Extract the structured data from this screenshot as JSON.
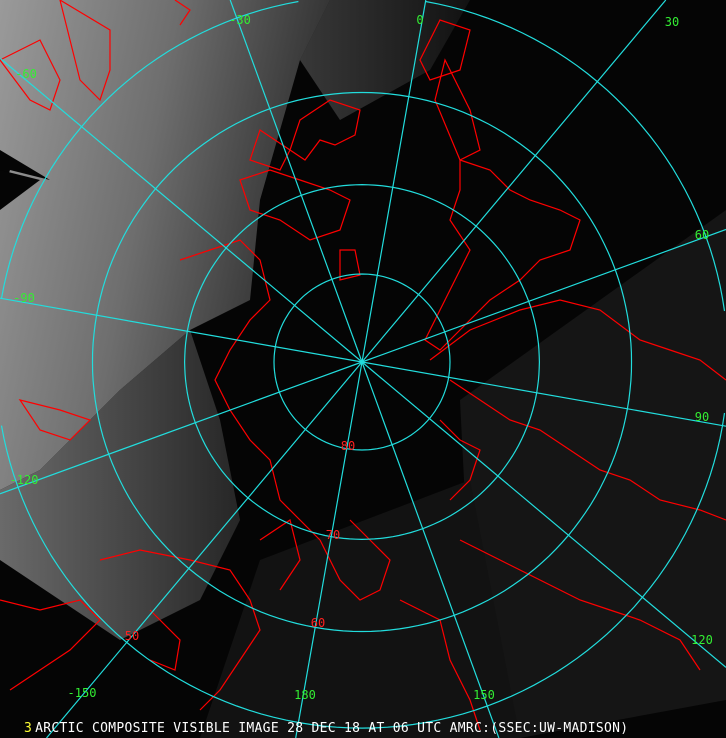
{
  "image": {
    "caption_frame": "3",
    "caption": "ARCTIC COMPOSITE VISIBLE IMAGE 28 DEC 18 AT 06 UTC AMRC:(SSEC:UW-MADISON)"
  },
  "grid": {
    "projection": "polar stereographic (north pole)",
    "latitudes": [
      {
        "value": 80,
        "label": "80"
      },
      {
        "value": 70,
        "label": "70"
      },
      {
        "value": 60,
        "label": "60"
      },
      {
        "value": 50,
        "label": "50"
      }
    ],
    "longitudes": [
      {
        "value": -30,
        "label": "-30"
      },
      {
        "value": 0,
        "label": "0"
      },
      {
        "value": 30,
        "label": "30"
      },
      {
        "value": 60,
        "label": "60"
      },
      {
        "value": 90,
        "label": "90"
      },
      {
        "value": 120,
        "label": "120"
      },
      {
        "value": 150,
        "label": "150"
      },
      {
        "value": 180,
        "label": "180"
      },
      {
        "value": -150,
        "label": "-150"
      },
      {
        "value": -120,
        "label": "-120"
      },
      {
        "value": -90,
        "label": "-90"
      },
      {
        "value": -60,
        "label": "-60"
      }
    ]
  },
  "colors": {
    "grid_lines": "#22dddd",
    "longitude_labels": "#33ee33",
    "latitude_labels": "#ff2020",
    "coastlines": "#ff0000",
    "caption_text": "#ffffff",
    "frame_number": "#ffff33"
  }
}
